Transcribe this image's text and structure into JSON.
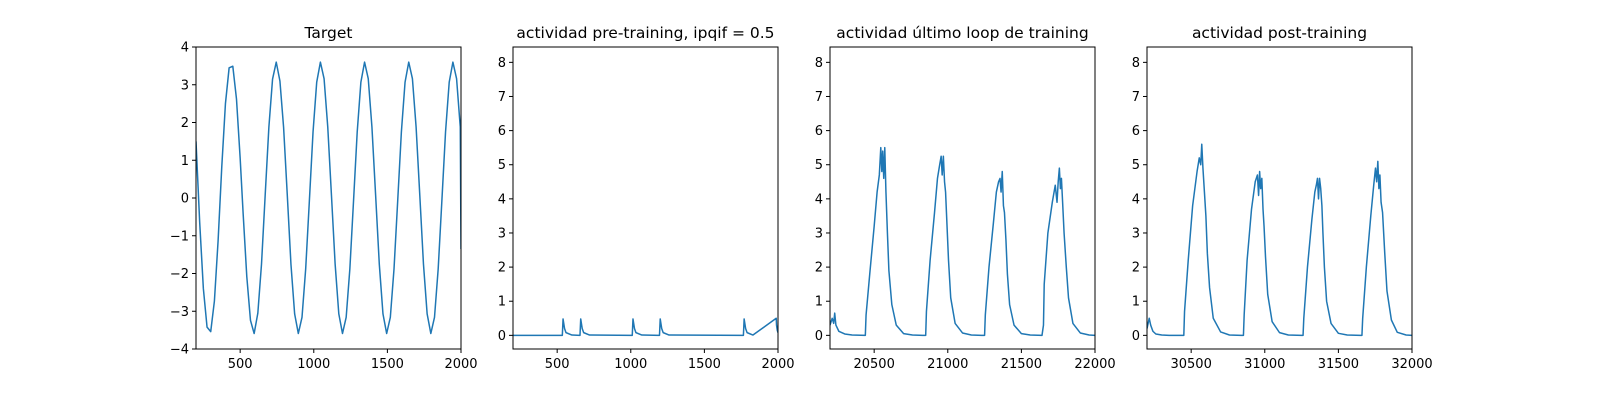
{
  "figure": {
    "line_color": "#1f77b4"
  },
  "chart_data": [
    {
      "type": "line",
      "title": "Target",
      "xlabel": "",
      "ylabel": "",
      "xlim": [
        200,
        2000
      ],
      "ylim": [
        -4,
        4
      ],
      "xticks": [
        500,
        1000,
        1500,
        2000
      ],
      "yticks": [
        -4,
        -3,
        -2,
        -1,
        0,
        1,
        2,
        3,
        4
      ],
      "series": [
        {
          "x": [
            200,
            225,
            250,
            275,
            300,
            325,
            350,
            375,
            400,
            425,
            450,
            475,
            500,
            520,
            545,
            570,
            595,
            620,
            645,
            670,
            695,
            720,
            745,
            770,
            795,
            820,
            845,
            870,
            895,
            920,
            945,
            970,
            995,
            1020,
            1045,
            1070,
            1095,
            1120,
            1145,
            1170,
            1195,
            1220,
            1245,
            1270,
            1295,
            1320,
            1345,
            1370,
            1395,
            1420,
            1445,
            1470,
            1495,
            1520,
            1545,
            1570,
            1595,
            1620,
            1645,
            1670,
            1695,
            1720,
            1745,
            1770,
            1795,
            1820,
            1845,
            1870,
            1895,
            1920,
            1945,
            1970,
            1995,
            2000
          ],
          "y": [
            1.5,
            -0.64,
            -2.4,
            -3.42,
            -3.54,
            -2.73,
            -1.14,
            0.82,
            2.5,
            3.45,
            3.49,
            2.62,
            1.05,
            -0.4,
            -2.08,
            -3.24,
            -3.59,
            -3.05,
            -1.75,
            0.08,
            1.88,
            3.15,
            3.6,
            3.1,
            1.87,
            0.08,
            -1.76,
            -3.07,
            -3.59,
            -3.16,
            -1.88,
            -0.08,
            1.75,
            3.07,
            3.6,
            3.16,
            1.88,
            0.08,
            -1.75,
            -3.07,
            -3.59,
            -3.16,
            -1.88,
            -0.08,
            1.75,
            3.07,
            3.6,
            3.16,
            1.88,
            0.08,
            -1.75,
            -3.07,
            -3.59,
            -3.16,
            -1.88,
            -0.08,
            1.75,
            3.07,
            3.6,
            3.16,
            1.88,
            0.08,
            -1.75,
            -3.07,
            -3.59,
            -3.16,
            -1.88,
            -0.08,
            1.75,
            3.07,
            3.6,
            3.16,
            1.88,
            -1.35
          ]
        }
      ]
    },
    {
      "type": "line",
      "title": "actividad pre-training, ipqif = 0.5",
      "xlabel": "",
      "ylabel": "",
      "xlim": [
        200,
        2000
      ],
      "ylim": [
        -0.4,
        8.45
      ],
      "xticks": [
        500,
        1000,
        1500,
        2000
      ],
      "yticks": [
        0,
        1,
        2,
        3,
        4,
        5,
        6,
        7,
        8
      ],
      "series": [
        {
          "x": [
            200,
            535,
            540,
            550,
            560,
            600,
            655,
            660,
            670,
            680,
            720,
            1010,
            1015,
            1025,
            1035,
            1075,
            1195,
            1200,
            1210,
            1220,
            1260,
            1765,
            1770,
            1780,
            1790,
            1830,
            1988,
            1990,
            1995,
            2000
          ],
          "y": [
            0,
            0,
            0.48,
            0.2,
            0.08,
            0.01,
            0,
            0.48,
            0.2,
            0.08,
            0.01,
            0,
            0.48,
            0.2,
            0.08,
            0.01,
            0,
            0.48,
            0.2,
            0.08,
            0.01,
            0,
            0.48,
            0.2,
            0.08,
            0.01,
            0.5,
            0.3,
            0.15,
            0.08
          ]
        }
      ]
    },
    {
      "type": "line",
      "title": "actividad último loop de training",
      "xlabel": "",
      "ylabel": "",
      "xlim": [
        20200,
        22000
      ],
      "ylim": [
        -0.4,
        8.45
      ],
      "xticks": [
        20500,
        21000,
        21500,
        22000
      ],
      "yticks": [
        0,
        1,
        2,
        3,
        4,
        5,
        6,
        7,
        8
      ],
      "series": [
        {
          "x": [
            20200,
            20215,
            20225,
            20232,
            20240,
            20260,
            20300,
            20350,
            20440,
            20445,
            20470,
            20500,
            20520,
            20535,
            20545,
            20552,
            20558,
            20565,
            20572,
            20580,
            20590,
            20600,
            20620,
            20650,
            20700,
            20760,
            20830,
            20850,
            20855,
            20880,
            20910,
            20930,
            20945,
            20955,
            20962,
            20970,
            20978,
            20985,
            20995,
            21005,
            21020,
            21050,
            21100,
            21160,
            21230,
            21250,
            21255,
            21280,
            21310,
            21330,
            21345,
            21355,
            21362,
            21370,
            21378,
            21385,
            21395,
            21405,
            21420,
            21450,
            21500,
            21560,
            21640,
            21650,
            21655,
            21680,
            21710,
            21730,
            21742,
            21750,
            21758,
            21765,
            21772,
            21780,
            21790,
            21805,
            21820,
            21850,
            21900,
            21960,
            22000
          ],
          "y": [
            0.3,
            0.5,
            0.35,
            0.65,
            0.3,
            0.12,
            0.04,
            0.01,
            0,
            0.6,
            1.8,
            3.2,
            4.2,
            4.7,
            5.5,
            4.8,
            5.4,
            4.6,
            5.5,
            4.2,
            3.0,
            1.9,
            0.9,
            0.3,
            0.05,
            0.01,
            0,
            0,
            0.7,
            2.2,
            3.6,
            4.6,
            5.0,
            5.25,
            4.7,
            5.25,
            4.5,
            4.2,
            3.2,
            2.2,
            1.1,
            0.35,
            0.07,
            0.01,
            0,
            0,
            0.6,
            2.0,
            3.3,
            4.2,
            4.5,
            4.6,
            4.2,
            4.8,
            3.8,
            3.6,
            2.8,
            1.8,
            0.9,
            0.3,
            0.05,
            0.01,
            0,
            0.3,
            1.5,
            3.0,
            3.9,
            4.4,
            3.9,
            4.5,
            4.9,
            4.3,
            4.6,
            3.9,
            3.0,
            2.0,
            1.1,
            0.35,
            0.07,
            0.01,
            0
          ]
        }
      ]
    },
    {
      "type": "line",
      "title": "actividad post-training",
      "xlabel": "",
      "ylabel": "",
      "xlim": [
        30200,
        32000
      ],
      "ylim": [
        -0.4,
        8.45
      ],
      "xticks": [
        30500,
        31000,
        31500,
        32000
      ],
      "yticks": [
        0,
        1,
        2,
        3,
        4,
        5,
        6,
        7,
        8
      ],
      "series": [
        {
          "x": [
            30200,
            30215,
            30225,
            30240,
            30260,
            30300,
            30350,
            30400,
            30450,
            30455,
            30480,
            30510,
            30540,
            30555,
            30565,
            30572,
            30580,
            30590,
            30600,
            30610,
            30625,
            30650,
            30700,
            30760,
            30840,
            30855,
            30860,
            30880,
            30910,
            30935,
            30950,
            30958,
            30965,
            30972,
            30980,
            30988,
            30995,
            31005,
            31020,
            31050,
            31100,
            31160,
            31250,
            31260,
            31265,
            31290,
            31320,
            31340,
            31350,
            31358,
            31365,
            31372,
            31380,
            31388,
            31395,
            31405,
            31420,
            31450,
            31500,
            31560,
            31650,
            31660,
            31665,
            31690,
            31720,
            31740,
            31752,
            31760,
            31768,
            31775,
            31782,
            31790,
            31800,
            31815,
            31830,
            31860,
            31900,
            31960,
            32000
          ],
          "y": [
            0.2,
            0.5,
            0.3,
            0.12,
            0.04,
            0.01,
            0,
            0,
            0,
            0.7,
            2.2,
            3.8,
            4.8,
            5.2,
            5.0,
            5.6,
            4.9,
            4.2,
            3.5,
            2.4,
            1.4,
            0.5,
            0.1,
            0.01,
            0,
            0,
            0.6,
            2.2,
            3.7,
            4.5,
            4.7,
            4.1,
            4.8,
            4.3,
            4.6,
            3.7,
            3.2,
            2.3,
            1.2,
            0.4,
            0.08,
            0.01,
            0,
            0,
            0.5,
            2.0,
            3.4,
            4.2,
            4.4,
            4.6,
            4.0,
            4.6,
            4.3,
            3.8,
            3.0,
            2.0,
            1.0,
            0.35,
            0.06,
            0.01,
            0,
            0,
            0.5,
            2.0,
            3.5,
            4.4,
            4.9,
            4.5,
            5.1,
            4.3,
            4.7,
            3.9,
            3.6,
            2.4,
            1.3,
            0.45,
            0.09,
            0.01,
            0
          ]
        }
      ]
    }
  ]
}
